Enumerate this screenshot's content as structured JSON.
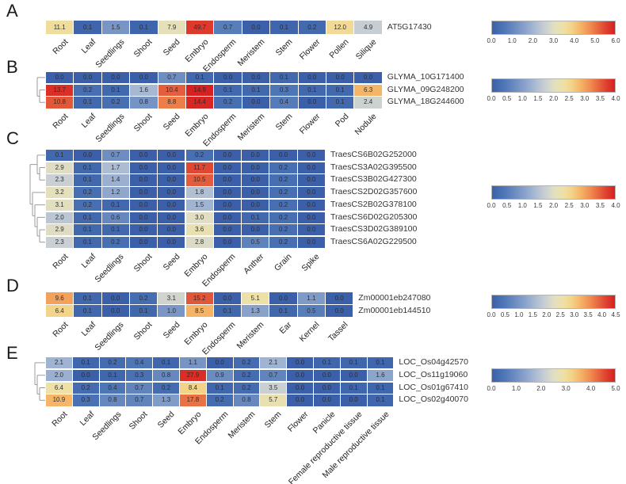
{
  "figure": {
    "colormap": {
      "low": "#3b60a9",
      "mid": "#e8e3c0",
      "high": "#d62721"
    },
    "color_scale": "log2(value+1)"
  },
  "chart_data": [
    {
      "type": "heatmap",
      "panel": "A",
      "categories": [
        "Root",
        "Leaf",
        "Seedlings",
        "Shoot",
        "Seed",
        "Embryo",
        "Endosperm",
        "Meristem",
        "Stem",
        "Flower",
        "Pollen",
        "Silique"
      ],
      "rows": [
        {
          "name": "AT5G17430",
          "values": [
            11.1,
            0.1,
            1.5,
            0.1,
            7.9,
            49.7,
            0.7,
            0.0,
            0.1,
            0.2,
            12.0,
            4.9
          ]
        }
      ],
      "dendrogram": null,
      "colorbar": {
        "vmin": 0,
        "vmax": 6,
        "ticks": [
          "0.0",
          "1.0",
          "2.0",
          "3.0",
          "4.0",
          "5.0",
          "6.0"
        ]
      }
    },
    {
      "type": "heatmap",
      "panel": "B",
      "categories": [
        "Root",
        "Leaf",
        "Seedlings",
        "Shoot",
        "Seed",
        "Embryo",
        "Endosperm",
        "Meristem",
        "Stem",
        "Flower",
        "Pod",
        "Nodule"
      ],
      "rows": [
        {
          "name": "GLYMA_10G171400",
          "values": [
            0.0,
            0.0,
            0.0,
            0.0,
            0.7,
            0.1,
            0.0,
            0.0,
            0.1,
            0.0,
            0.0,
            0.0
          ]
        },
        {
          "name": "GLYMA_09G248200",
          "values": [
            13.7,
            0.2,
            0.1,
            1.6,
            10.4,
            14.9,
            0.1,
            0.1,
            0.3,
            0.1,
            0.1,
            6.3
          ]
        },
        {
          "name": "GLYMA_18G244600",
          "values": [
            10.8,
            0.1,
            0.2,
            0.8,
            8.8,
            14.4,
            0.2,
            0.0,
            0.4,
            0.0,
            0.1,
            2.4
          ]
        }
      ],
      "dendrogram": [
        0,
        [
          1,
          2
        ]
      ],
      "colorbar": {
        "vmin": 0,
        "vmax": 4,
        "ticks": [
          "0.0",
          "0.5",
          "1.0",
          "1.5",
          "2.0",
          "2.5",
          "3.0",
          "3.5",
          "4.0"
        ]
      }
    },
    {
      "type": "heatmap",
      "panel": "C",
      "categories": [
        "Root",
        "Leaf",
        "Seedlings",
        "Shoot",
        "Seed",
        "Embryo",
        "Endosperm",
        "Anther",
        "Grain",
        "Spike"
      ],
      "rows": [
        {
          "name": "TraesCS6B02G252000",
          "values": [
            0.1,
            0.0,
            0.7,
            0.0,
            0.0,
            0.2,
            0.0,
            0.0,
            0.0,
            0.0
          ]
        },
        {
          "name": "TraesCS3A02G395500",
          "values": [
            2.9,
            0.1,
            1.7,
            0.0,
            0.0,
            11.7,
            0.0,
            0.0,
            0.2,
            0.0
          ]
        },
        {
          "name": "TraesCS3B02G427300",
          "values": [
            2.3,
            0.1,
            1.4,
            0.0,
            0.0,
            10.5,
            0.0,
            0.0,
            0.2,
            0.0
          ]
        },
        {
          "name": "TraesCS2D02G357600",
          "values": [
            3.2,
            0.2,
            1.2,
            0.0,
            0.0,
            1.8,
            0.0,
            0.0,
            0.2,
            0.0
          ]
        },
        {
          "name": "TraesCS2B02G378100",
          "values": [
            3.1,
            0.2,
            0.1,
            0.0,
            0.0,
            1.5,
            0.0,
            0.0,
            0.2,
            0.0
          ]
        },
        {
          "name": "TraesCS6D02G205300",
          "values": [
            2.0,
            0.1,
            0.6,
            0.0,
            0.0,
            3.0,
            0.0,
            0.1,
            0.2,
            0.0
          ]
        },
        {
          "name": "TraesCS3D02G389100",
          "values": [
            2.9,
            0.1,
            0.1,
            0.0,
            0.0,
            3.6,
            0.0,
            0.0,
            0.2,
            0.0
          ]
        },
        {
          "name": "TraesCS6A02G229500",
          "values": [
            2.3,
            0.1,
            0.2,
            0.0,
            0.0,
            2.8,
            0.0,
            0.5,
            0.2,
            0.0
          ]
        }
      ],
      "dendrogram": [
        [
          0,
          [
            1,
            2
          ]
        ],
        [
          3,
          [
            4,
            [
              5,
              [
                6,
                7
              ]
            ]
          ]
        ]
      ],
      "colorbar": {
        "vmin": 0,
        "vmax": 4,
        "ticks": [
          "0.0",
          "0.5",
          "1.0",
          "1.5",
          "2.0",
          "2.5",
          "3.0",
          "3.5",
          "4.0"
        ]
      }
    },
    {
      "type": "heatmap",
      "panel": "D",
      "categories": [
        "Root",
        "Leaf",
        "Seedlings",
        "Shoot",
        "Seed",
        "Embryo",
        "Endosperm",
        "Meristem",
        "Ear",
        "Kernel",
        "Tassel"
      ],
      "rows": [
        {
          "name": "Zm00001eb247080",
          "values": [
            9.6,
            0.1,
            0.0,
            0.2,
            3.1,
            15.2,
            0.0,
            5.1,
            0.0,
            1.1,
            0.0
          ]
        },
        {
          "name": "Zm00001eb144510",
          "values": [
            6.4,
            0.1,
            0.0,
            0.1,
            1.0,
            8.5,
            0.1,
            1.3,
            0.1,
            0.5,
            0.0
          ]
        }
      ],
      "dendrogram": null,
      "colorbar": {
        "vmin": 0,
        "vmax": 4.5,
        "ticks": [
          "0.0",
          "0.5",
          "1.0",
          "1.5",
          "2.0",
          "2.5",
          "3.0",
          "3.5",
          "4.0",
          "4.5"
        ]
      }
    },
    {
      "type": "heatmap",
      "panel": "E",
      "categories": [
        "Root",
        "Leaf",
        "Seedlings",
        "Shoot",
        "Seed",
        "Embryo",
        "Endosperm",
        "Meristem",
        "Stem",
        "Flower",
        "Panicle",
        "Female reproductive tissue",
        "Male reproductive tissue"
      ],
      "rows": [
        {
          "name": "LOC_Os04g42570",
          "values": [
            2.1,
            0.1,
            0.2,
            0.4,
            0.1,
            1.1,
            0.0,
            0.2,
            2.1,
            0.0,
            0.1,
            0.1,
            0.1
          ]
        },
        {
          "name": "LOC_Os11g19060",
          "values": [
            2.0,
            0.0,
            0.1,
            0.3,
            0.8,
            27.9,
            0.9,
            0.2,
            0.7,
            0.0,
            0.0,
            0.0,
            1.6
          ]
        },
        {
          "name": "LOC_Os01g67410",
          "values": [
            6.4,
            0.2,
            0.4,
            0.7,
            0.2,
            8.4,
            0.1,
            0.2,
            3.5,
            0.0,
            0.0,
            0.1,
            0.1
          ]
        },
        {
          "name": "LOC_Os02g40070",
          "values": [
            10.9,
            0.3,
            0.8,
            0.7,
            1.3,
            17.8,
            0.2,
            0.8,
            5.7,
            0.0,
            0.0,
            0.0,
            0.1
          ]
        }
      ],
      "dendrogram": [
        0,
        [
          1,
          [
            2,
            3
          ]
        ]
      ],
      "colorbar": {
        "vmin": 0,
        "vmax": 5,
        "ticks": [
          "0.0",
          "1.0",
          "2.0",
          "3.0",
          "4.0",
          "5.0"
        ]
      }
    }
  ]
}
